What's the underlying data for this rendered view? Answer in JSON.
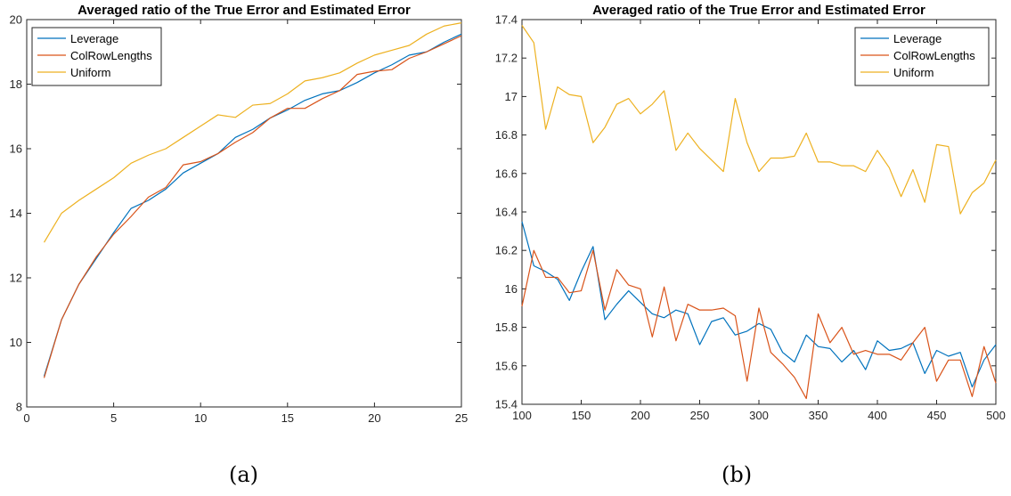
{
  "colors": {
    "Leverage": "#0072BD",
    "ColRowLengths": "#D95319",
    "Uniform": "#EDB120",
    "axis": "#262626",
    "background": "#ffffff"
  },
  "captions": {
    "a": "(a)",
    "b": "(b)"
  },
  "chart_data": [
    {
      "type": "line",
      "title": "Averaged ratio of the True Error and Estimated Error",
      "xlabel": "",
      "ylabel": "",
      "xlim": [
        0,
        25
      ],
      "ylim": [
        8,
        20
      ],
      "xticks": [
        0,
        5,
        10,
        15,
        20,
        25
      ],
      "yticks": [
        8,
        10,
        12,
        14,
        16,
        18,
        20
      ],
      "ytick_labels": [
        "8",
        "10",
        "12",
        "14",
        "16",
        "18",
        "20"
      ],
      "grid": false,
      "legend": "top-left",
      "x": [
        1,
        2,
        3,
        4,
        5,
        6,
        7,
        8,
        9,
        10,
        11,
        12,
        13,
        14,
        15,
        16,
        17,
        18,
        19,
        20,
        21,
        22,
        23,
        24,
        25
      ],
      "series": [
        {
          "name": "Leverage",
          "values": [
            8.95,
            10.7,
            11.8,
            12.6,
            13.4,
            14.15,
            14.4,
            14.75,
            15.25,
            15.55,
            15.85,
            16.35,
            16.6,
            16.95,
            17.2,
            17.5,
            17.7,
            17.8,
            18.05,
            18.35,
            18.6,
            18.9,
            19.0,
            19.3,
            19.55
          ]
        },
        {
          "name": "ColRowLengths",
          "values": [
            8.9,
            10.7,
            11.8,
            12.65,
            13.35,
            13.9,
            14.5,
            14.8,
            15.5,
            15.6,
            15.85,
            16.2,
            16.5,
            16.95,
            17.25,
            17.25,
            17.55,
            17.8,
            18.3,
            18.4,
            18.45,
            18.8,
            19.0,
            19.25,
            19.5
          ]
        },
        {
          "name": "Uniform",
          "values": [
            13.1,
            14.0,
            14.4,
            14.75,
            15.1,
            15.55,
            15.8,
            16.0,
            16.35,
            16.7,
            17.05,
            16.97,
            17.35,
            17.4,
            17.7,
            18.1,
            18.2,
            18.35,
            18.65,
            18.9,
            19.05,
            19.2,
            19.55,
            19.8,
            19.9
          ]
        }
      ]
    },
    {
      "type": "line",
      "title": "Averaged ratio of the True Error and Estimated Error",
      "xlabel": "",
      "ylabel": "",
      "xlim": [
        100,
        500
      ],
      "ylim": [
        15.4,
        17.4
      ],
      "xticks": [
        100,
        150,
        200,
        250,
        300,
        350,
        400,
        450,
        500
      ],
      "yticks": [
        15.4,
        15.6,
        15.8,
        16,
        16.2,
        16.4,
        16.6,
        16.8,
        17,
        17.2,
        17.4
      ],
      "ytick_labels": [
        "15.4",
        "15.6",
        "15.8",
        "16",
        "16.2",
        "16.4",
        "16.6",
        "16.8",
        "17",
        "17.2",
        "17.4"
      ],
      "grid": false,
      "legend": "top-right",
      "x": [
        100,
        110,
        120,
        130,
        140,
        150,
        160,
        170,
        180,
        190,
        200,
        210,
        220,
        230,
        240,
        250,
        260,
        270,
        280,
        290,
        300,
        310,
        320,
        330,
        340,
        350,
        360,
        370,
        380,
        390,
        400,
        410,
        420,
        430,
        440,
        450,
        460,
        470,
        480,
        490,
        500
      ],
      "series": [
        {
          "name": "Leverage",
          "values": [
            16.35,
            16.12,
            16.09,
            16.05,
            15.94,
            16.09,
            16.22,
            15.84,
            15.92,
            15.99,
            15.93,
            15.87,
            15.85,
            15.89,
            15.87,
            15.71,
            15.83,
            15.85,
            15.76,
            15.78,
            15.82,
            15.79,
            15.67,
            15.62,
            15.76,
            15.7,
            15.69,
            15.62,
            15.68,
            15.58,
            15.73,
            15.68,
            15.69,
            15.72,
            15.56,
            15.68,
            15.65,
            15.67,
            15.49,
            15.63,
            15.71
          ]
        },
        {
          "name": "ColRowLengths",
          "values": [
            15.91,
            16.2,
            16.06,
            16.06,
            15.98,
            15.99,
            16.2,
            15.89,
            16.1,
            16.02,
            16.0,
            15.75,
            16.01,
            15.73,
            15.92,
            15.89,
            15.89,
            15.9,
            15.86,
            15.52,
            15.9,
            15.67,
            15.61,
            15.54,
            15.43,
            15.87,
            15.72,
            15.8,
            15.66,
            15.68,
            15.66,
            15.66,
            15.63,
            15.72,
            15.8,
            15.52,
            15.63,
            15.63,
            15.44,
            15.7,
            15.51
          ]
        },
        {
          "name": "Uniform",
          "values": [
            17.37,
            17.28,
            16.83,
            17.05,
            17.01,
            17.0,
            16.76,
            16.84,
            16.96,
            16.99,
            16.91,
            16.96,
            17.03,
            16.72,
            16.81,
            16.73,
            16.67,
            16.61,
            16.99,
            16.76,
            16.61,
            16.68,
            16.68,
            16.69,
            16.81,
            16.66,
            16.66,
            16.64,
            16.64,
            16.61,
            16.72,
            16.63,
            16.48,
            16.62,
            16.45,
            16.75,
            16.74,
            16.39,
            16.5,
            16.55,
            16.67
          ]
        }
      ]
    }
  ]
}
